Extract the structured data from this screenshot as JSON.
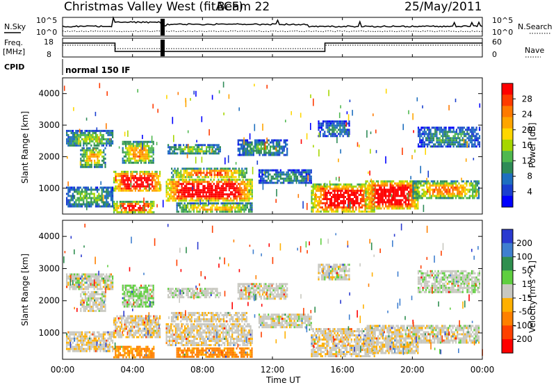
{
  "header": {
    "title": "Christmas Valley West (fitACF)",
    "beam": "Beam 22",
    "date": "25/May/2011"
  },
  "panels": {
    "nsky_label": "N.Sky",
    "freq_label_1": "Freq.",
    "freq_label_2": "[MHz]",
    "cpid_label": "CPID",
    "nsearch_label": "N.Search",
    "nave_label": "Nave",
    "nsky_ticks": [
      "10^5",
      "10^0"
    ],
    "nsearch_ticks": [
      "10^5",
      "10^0"
    ],
    "freq_ticks": [
      "18",
      "8"
    ],
    "nave_ticks": [
      "60",
      "0"
    ],
    "cpid_text": "normal 150 IF"
  },
  "power_colorbar": {
    "label": "Power [dB]",
    "ticks": [
      "28",
      "24",
      "20",
      "16",
      "12",
      "8",
      "4"
    ],
    "colors": [
      "#ff0000",
      "#ff3b00",
      "#ff7a00",
      "#ffa500",
      "#ffd700",
      "#a6d600",
      "#4fb84f",
      "#2e8b57",
      "#1e6fbf",
      "#1a3fcf",
      "#0000ff"
    ]
  },
  "velocity_colorbar": {
    "label": "Velocity [m s^-1]",
    "ticks": [
      "200",
      "100",
      "50",
      "15",
      "-15",
      "-50",
      "-100",
      "-200"
    ],
    "colors": [
      "#2a3ad0",
      "#3f7fd0",
      "#2f8f4f",
      "#5fcf3f",
      "#c8c8c0",
      "#ffb000",
      "#ff8000",
      "#ff4000",
      "#ff0000"
    ]
  },
  "chart_data": {
    "type": "heatmap",
    "xlabel": "Time UT",
    "ylabel": "Slant Range [km]",
    "x_ticks": [
      "00:00",
      "04:00",
      "08:00",
      "12:00",
      "16:00",
      "20:00",
      "00:00"
    ],
    "y_ticks": [
      "1000",
      "2000",
      "3000",
      "4000"
    ],
    "xlim": [
      0,
      24
    ],
    "ylim": [
      180,
      4500
    ],
    "power_scale": [
      0,
      30
    ],
    "velocity_scale": [
      -250,
      250
    ],
    "echo_regions": [
      {
        "t0": 0.2,
        "t1": 2.9,
        "r0": 2350,
        "r1": 2850,
        "power": 10,
        "velocity": 0
      },
      {
        "t0": 0.2,
        "t1": 2.9,
        "r0": 420,
        "r1": 1050,
        "power": 9,
        "velocity": -5
      },
      {
        "t0": 1.0,
        "t1": 2.4,
        "r0": 1700,
        "r1": 2300,
        "power": 14,
        "velocity": 0
      },
      {
        "t0": 2.9,
        "t1": 5.6,
        "r0": 900,
        "r1": 1550,
        "power": 25,
        "velocity": -8
      },
      {
        "t0": 2.9,
        "t1": 5.2,
        "r0": 250,
        "r1": 600,
        "power": 22,
        "velocity": -60
      },
      {
        "t0": 3.4,
        "t1": 5.2,
        "r0": 1800,
        "r1": 2500,
        "power": 15,
        "velocity": 20
      },
      {
        "t0": 5.9,
        "t1": 10.8,
        "r0": 620,
        "r1": 1300,
        "power": 27,
        "velocity": -5
      },
      {
        "t0": 6.2,
        "t1": 10.5,
        "r0": 1350,
        "r1": 1650,
        "power": 18,
        "velocity": -5
      },
      {
        "t0": 6.5,
        "t1": 10.8,
        "r0": 250,
        "r1": 550,
        "power": 14,
        "velocity": -60
      },
      {
        "t0": 6.0,
        "t1": 9.0,
        "r0": 2100,
        "r1": 2400,
        "power": 10,
        "velocity": 5
      },
      {
        "t0": 10.0,
        "t1": 12.8,
        "r0": 2050,
        "r1": 2550,
        "power": 8,
        "velocity": 0
      },
      {
        "t0": 11.2,
        "t1": 14.2,
        "r0": 1150,
        "r1": 1600,
        "power": 7,
        "velocity": 0
      },
      {
        "t0": 14.2,
        "t1": 17.8,
        "r0": 250,
        "r1": 1150,
        "power": 24,
        "velocity": -5
      },
      {
        "t0": 17.3,
        "t1": 20.3,
        "r0": 350,
        "r1": 1250,
        "power": 26,
        "velocity": -5
      },
      {
        "t0": 20.0,
        "t1": 23.8,
        "r0": 700,
        "r1": 1250,
        "power": 16,
        "velocity": 0
      },
      {
        "t0": 20.3,
        "t1": 23.8,
        "r0": 2300,
        "r1": 2950,
        "power": 7,
        "velocity": 5
      },
      {
        "t0": 14.6,
        "t1": 16.4,
        "r0": 2650,
        "r1": 3150,
        "power": 6,
        "velocity": 0
      }
    ]
  }
}
